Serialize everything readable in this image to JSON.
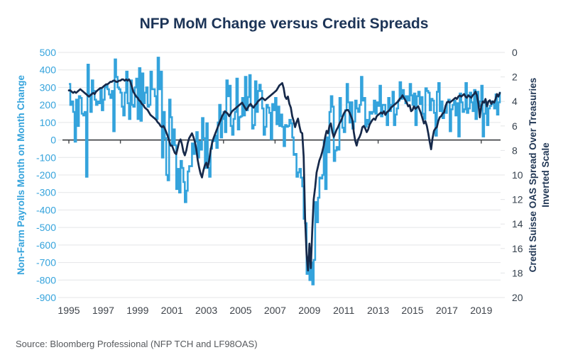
{
  "source_note": "Source: Bloomberg Professional (NFP TCH and LF98OAS)",
  "colors": {
    "background": "#ffffff",
    "title": "#1C3457",
    "nfp_blue": "#34A3DC",
    "spread_navy": "#16294A",
    "grid": "#E4E5E7",
    "axis_line": "#44474A",
    "x_label": "#3F444B",
    "right_tick": "#37424E",
    "source": "#56595D"
  },
  "chart_data": {
    "type": "line",
    "title": "NFP MoM Change versus Credit Spreads",
    "x_start": 1995,
    "x_step": "monthly",
    "x_tick_labels": [
      "1995",
      "1997",
      "1999",
      "2001",
      "2003",
      "2005",
      "2007",
      "2009",
      "2011",
      "2013",
      "2015",
      "2017",
      "2019"
    ],
    "axis_tick_years": [
      1995,
      1998,
      2001,
      2004,
      2007,
      2010,
      2013,
      2016,
      2019
    ],
    "grid": "horizontal",
    "legend": "none",
    "left_axis": {
      "label": "Non-Farm Payrolls Month on Month Change",
      "min": -900,
      "max": 500,
      "ticks": [
        500,
        400,
        300,
        200,
        100,
        0,
        -100,
        -200,
        -300,
        -400,
        -500,
        -600,
        -700,
        -800,
        -900
      ]
    },
    "right_axis": {
      "label_line1": "Credit Suisse OAS Spread Over Treasuries",
      "label_line2": "Inverted Scale",
      "min": 0,
      "max": 20,
      "inverted": true,
      "ticks": [
        0,
        2,
        4,
        6,
        8,
        10,
        12,
        14,
        16,
        18,
        20
      ]
    },
    "series": [
      {
        "name": "Non-Farm Payrolls Month on Month Change",
        "axis": "left",
        "style": "step",
        "color": "#34A3DC",
        "values": [
          320,
          200,
          220,
          160,
          -10,
          230,
          80,
          250,
          240,
          150,
          140,
          160,
          -210,
          430,
          260,
          160,
          340,
          280,
          230,
          200,
          220,
          210,
          290,
          170,
          230,
          300,
          310,
          290,
          260,
          240,
          280,
          50,
          460,
          360,
          300,
          290,
          270,
          190,
          140,
          270,
          390,
          210,
          120,
          340,
          200,
          190,
          300,
          350,
          120,
          410,
          110,
          380,
          210,
          270,
          300,
          190,
          200,
          390,
          290,
          290,
          250,
          120,
          470,
          290,
          390,
          -100,
          160,
          10,
          -200,
          -230,
          230,
          130,
          -30,
          60,
          -30,
          -280,
          -165,
          -300,
          -120,
          -160,
          -240,
          -355,
          -290,
          -180,
          -150,
          -150,
          -20,
          -80,
          -10,
          45,
          -100,
          -10,
          -55,
          125,
          10,
          -160,
          95,
          -160,
          -210,
          -50,
          -6,
          -5,
          25,
          -45,
          100,
          200,
          15,
          120,
          160,
          45,
          340,
          250,
          310,
          80,
          30,
          120,
          160,
          350,
          60,
          130,
          135,
          240,
          140,
          360,
          170,
          245,
          370,
          195,
          65,
          85,
          335,
          160,
          280,
          315,
          280,
          180,
          30,
          75,
          200,
          185,
          155,
          5,
          205,
          170,
          240,
          90,
          190,
          80,
          145,
          75,
          -35,
          85,
          75,
          80,
          115,
          95,
          15,
          -85,
          -80,
          -210,
          -185,
          -165,
          -215,
          -265,
          -450,
          -475,
          -765,
          -695,
          -800,
          -700,
          -825,
          -685,
          -355,
          -470,
          -330,
          -215,
          -220,
          -200,
          -5,
          -280,
          15,
          -70,
          160,
          250,
          190,
          -120,
          -60,
          -40,
          -55,
          240,
          135,
          70,
          45,
          170,
          320,
          215,
          100,
          215,
          65,
          105,
          225,
          180,
          160,
          200,
          360,
          225,
          240,
          75,
          115,
          90,
          160,
          150,
          160,
          225,
          150,
          215,
          195,
          310,
          135,
          200,
          200,
          145,
          85,
          240,
          165,
          200,
          275,
          85,
          145,
          180,
          225,
          330,
          235,
          285,
          250,
          210,
          250,
          225,
          320,
          255,
          200,
          265,
          85,
          250,
          275,
          205,
          245,
          150,
          120,
          295,
          280,
          270,
          170,
          235,
          225,
          155,
          25,
          275,
          325,
          165,
          220,
          125,
          165,
          155,
          215,
          230,
          50,
          175,
          200,
          225,
          140,
          210,
          20,
          265,
          215,
          160,
          175,
          325,
          155,
          180,
          270,
          215,
          165,
          285,
          120,
          275,
          195,
          220,
          310,
          20,
          150,
          215,
          85,
          180,
          195,
          220,
          205,
          180,
          260,
          145,
          215,
          275
        ]
      },
      {
        "name": "Credit Suisse OAS Spread Over Treasuries",
        "axis": "right",
        "style": "line",
        "color": "#16294A",
        "values": [
          3.1,
          3.1,
          3.2,
          3.3,
          3.2,
          3.3,
          3.2,
          3.1,
          3.0,
          3.1,
          3.2,
          3.3,
          3.4,
          3.5,
          3.6,
          3.5,
          3.4,
          3.3,
          3.4,
          3.2,
          3.1,
          3.0,
          2.9,
          2.9,
          2.8,
          2.7,
          2.6,
          2.6,
          2.5,
          2.4,
          2.4,
          2.3,
          2.3,
          2.4,
          2.4,
          2.3,
          2.3,
          2.2,
          2.2,
          2.3,
          2.2,
          2.3,
          2.2,
          2.4,
          2.8,
          3.2,
          3.4,
          3.6,
          3.7,
          3.9,
          4.0,
          4.2,
          4.3,
          4.5,
          4.6,
          4.7,
          4.9,
          5.1,
          5.2,
          5.3,
          5.4,
          5.5,
          5.7,
          5.8,
          6.0,
          6.1,
          6.0,
          6.2,
          6.5,
          6.8,
          7.2,
          7.6,
          7.6,
          7.9,
          8.2,
          8.3,
          7.8,
          7.3,
          7.1,
          7.5,
          8.1,
          8.4,
          8.0,
          7.4,
          7.0,
          6.8,
          6.6,
          6.9,
          7.3,
          7.9,
          8.8,
          9.4,
          9.9,
          10.2,
          9.6,
          9.2,
          9.0,
          9.4,
          8.8,
          8.0,
          7.4,
          7.0,
          6.7,
          6.4,
          6.1,
          5.8,
          5.5,
          5.2,
          5.0,
          4.8,
          4.9,
          5.0,
          5.2,
          5.0,
          4.8,
          4.7,
          4.6,
          4.5,
          4.4,
          4.3,
          4.2,
          4.1,
          4.3,
          4.5,
          4.7,
          4.5,
          4.3,
          4.2,
          4.4,
          4.5,
          4.3,
          4.2,
          4.0,
          3.9,
          3.8,
          3.7,
          3.8,
          3.9,
          3.8,
          3.7,
          3.6,
          3.5,
          3.4,
          3.3,
          3.2,
          3.1,
          2.9,
          2.7,
          2.6,
          2.5,
          2.9,
          3.6,
          3.8,
          3.6,
          4.2,
          4.5,
          5.2,
          5.6,
          6.1,
          5.7,
          5.4,
          6.0,
          6.5,
          6.6,
          8.5,
          13.5,
          16.5,
          17.8,
          15.6,
          17.6,
          14.5,
          12.0,
          11.0,
          9.8,
          9.3,
          8.8,
          8.5,
          8.1,
          7.6,
          6.9,
          6.4,
          6.6,
          6.0,
          5.8,
          6.5,
          6.9,
          6.6,
          6.3,
          6.1,
          5.8,
          5.6,
          5.3,
          5.0,
          4.8,
          4.7,
          4.7,
          4.9,
          5.2,
          5.5,
          6.5,
          7.2,
          7.6,
          7.1,
          6.9,
          6.6,
          6.1,
          6.0,
          6.2,
          6.5,
          6.3,
          5.9,
          5.7,
          5.5,
          5.4,
          5.5,
          5.2,
          5.1,
          5.0,
          4.9,
          5.0,
          4.8,
          5.1,
          4.9,
          4.8,
          4.7,
          4.5,
          4.4,
          4.3,
          4.2,
          4.1,
          4.0,
          3.8,
          3.7,
          3.5,
          3.7,
          3.9,
          4.1,
          4.4,
          4.3,
          4.8,
          4.7,
          4.4,
          4.6,
          4.5,
          4.4,
          4.7,
          5.0,
          5.4,
          5.8,
          5.6,
          6.0,
          6.6,
          7.3,
          7.9,
          7.0,
          6.4,
          6.2,
          6.1,
          5.6,
          5.3,
          5.2,
          5.0,
          4.9,
          4.4,
          4.1,
          4.0,
          4.1,
          4.0,
          3.9,
          3.8,
          3.7,
          3.8,
          3.6,
          3.5,
          3.6,
          3.5,
          3.4,
          3.6,
          3.7,
          3.5,
          3.6,
          3.7,
          3.5,
          3.4,
          3.2,
          3.5,
          4.2,
          5.3,
          4.4,
          4.0,
          4.1,
          3.8,
          4.4,
          4.0,
          3.9,
          4.2,
          4.0,
          4.1,
          3.8,
          3.4,
          3.6,
          3.3
        ]
      }
    ]
  }
}
